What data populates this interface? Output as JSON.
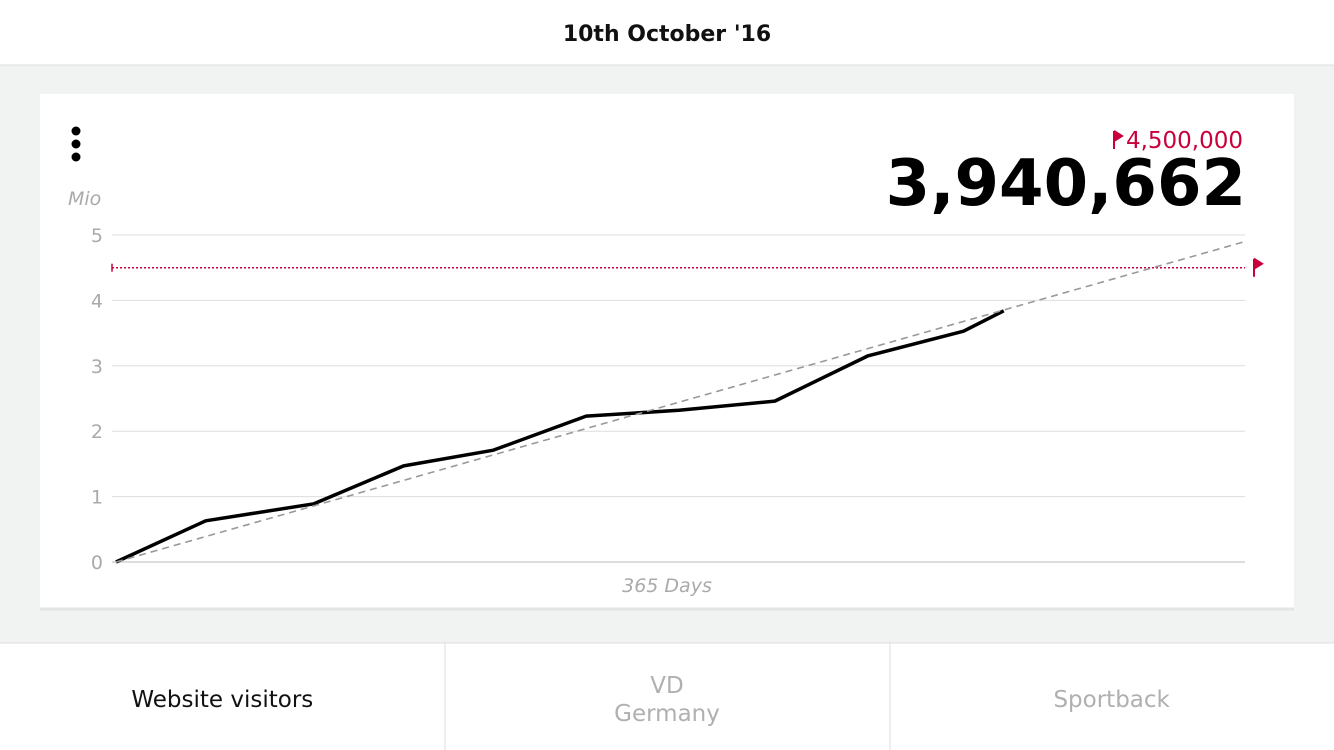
{
  "header": {
    "title": "10th October '16"
  },
  "card": {
    "current": "3,940,662",
    "chart_data": {
      "type": "line",
      "y_label": "Mio",
      "x_label": "365 Days",
      "x": [
        0,
        29,
        64,
        93,
        122,
        152,
        182,
        213,
        243,
        274,
        287
      ],
      "series": [
        {
          "color": "#000000",
          "values": [
            0,
            0.63,
            0.89,
            1.47,
            1.71,
            2.23,
            2.32,
            2.46,
            3.15,
            3.53,
            3.84
          ]
        },
        {
          "color": "#999999",
          "dashed": true,
          "x": [
            0,
            365
          ],
          "values": [
            0,
            4.9
          ]
        }
      ],
      "target": {
        "value": 4.5,
        "label": "4,500,000",
        "color": "#c8003c"
      },
      "xlim": [
        0,
        365
      ],
      "ylim": [
        0,
        5
      ],
      "yticks": [
        0,
        1,
        2,
        3,
        4,
        5
      ],
      "grid": true
    }
  },
  "tabs": [
    [
      "Website visitors"
    ],
    [
      "VD",
      "Germany"
    ],
    [
      "Sportback"
    ]
  ],
  "active_tab": 0
}
